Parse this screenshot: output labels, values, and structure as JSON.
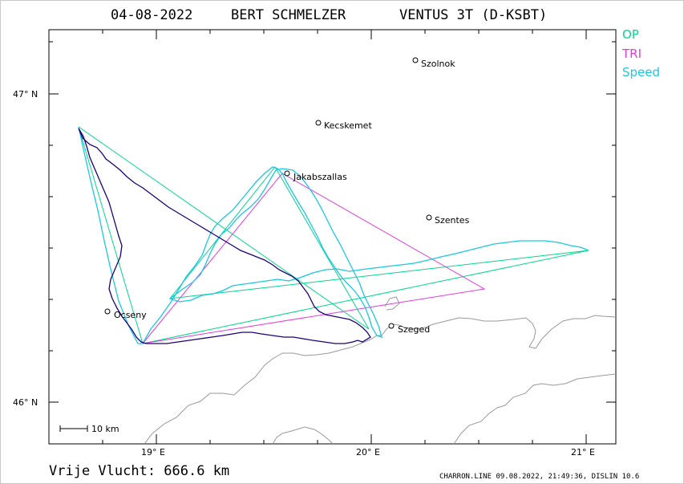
{
  "title": {
    "date": "04-08-2022",
    "pilot": "BERT SCHMELZER",
    "glider": "VENTUS 3T (D-KSBT)"
  },
  "legend": [
    {
      "label": "OP",
      "color": "#00d98c"
    },
    {
      "label": "TRI",
      "color": "#e23ce0"
    },
    {
      "label": "Speed",
      "color": "#19c7e6"
    }
  ],
  "axes": {
    "lat_labels": [
      "47° N",
      "46° N"
    ],
    "lon_labels": [
      "19° E",
      "20° E",
      "21° E"
    ]
  },
  "scale_bar": {
    "label": "10 km"
  },
  "places": [
    {
      "name": "Szolnok"
    },
    {
      "name": "Kecskemet"
    },
    {
      "name": "Jakabszallas"
    },
    {
      "name": "Szentes"
    },
    {
      "name": "Ocseny"
    },
    {
      "name": "Szeged"
    }
  ],
  "distance_text": "Vrije Vlucht:  666.6 km",
  "footer": "CHARRON.LINE 09.08.2022, 21:49:36, DISLIN 10.6",
  "colors": {
    "track": "#1c007a",
    "border": "#9a9a9a",
    "op": "#00d98c",
    "tri": "#e23ce0",
    "speed": "#19c7e6"
  }
}
